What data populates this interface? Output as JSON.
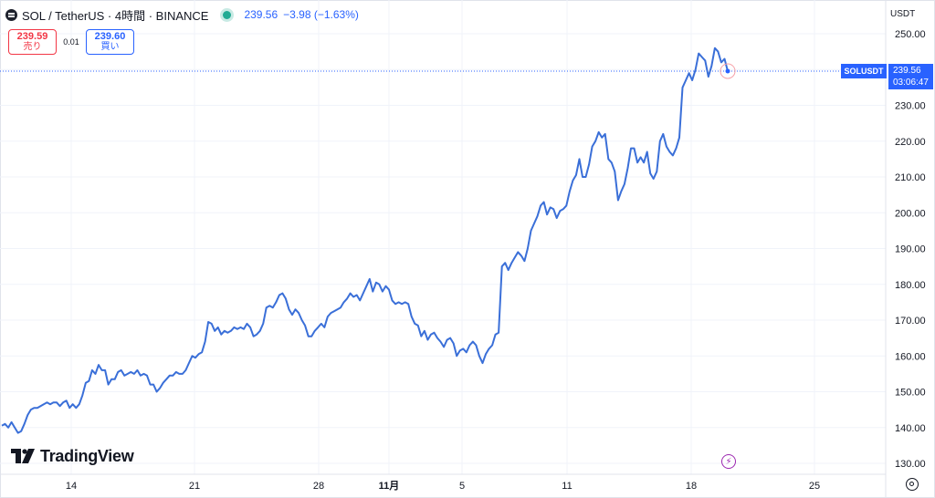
{
  "header": {
    "title": "SOL / TetherUS · 4時間 · BINANCE",
    "last": "239.56",
    "change": "−3.98 (−1.63%)"
  },
  "trade": {
    "sell_price": "239.59",
    "sell_label": "売り",
    "spread": "0.01",
    "buy_price": "239.60",
    "buy_label": "買い"
  },
  "axis": {
    "currency": "USDT"
  },
  "price_label": {
    "symbol": "SOLUSDT",
    "price": "239.56",
    "countdown": "03:06:47"
  },
  "branding": {
    "logo_text": "TradingView"
  },
  "colors": {
    "line": "#3a6fd8",
    "accent": "#2962ff",
    "sell": "#f23645",
    "grid": "#f0f3fa"
  },
  "chart_data": {
    "type": "line",
    "series": [
      {
        "values": [
          140.5,
          141,
          140,
          141.5,
          140,
          138.5,
          139,
          141,
          143.5,
          145,
          145.5,
          145.5,
          146,
          146.5,
          147,
          146.5,
          147,
          147,
          146,
          147,
          147.5,
          145.5,
          146.5,
          145.5,
          146.5,
          149,
          152.5,
          153,
          156,
          155,
          157.5,
          156,
          156,
          152,
          153.5,
          153.5,
          155.5,
          156,
          154.5,
          155,
          155.5,
          155,
          156,
          154.5,
          155,
          154.5,
          152,
          152,
          150,
          151,
          152.5,
          153.5,
          154.5,
          154.5,
          155.5,
          155,
          155,
          156,
          158,
          160,
          159.5,
          160.5,
          161,
          164,
          169.5,
          169,
          167,
          168,
          166,
          167,
          166.5,
          167,
          168,
          167.5,
          168,
          167.5,
          169,
          168,
          165.5,
          166,
          167,
          169,
          173.5,
          174,
          173.5,
          175,
          177,
          177.5,
          176,
          173,
          171.5,
          173,
          172,
          170,
          168.5,
          165.5,
          165.5,
          167,
          168,
          169,
          168,
          171,
          172,
          172.5,
          173,
          173.5,
          175,
          176,
          177.5,
          176.5,
          177,
          175.5,
          177.5,
          179.5,
          181.5,
          178,
          180.5,
          180,
          178,
          179.5,
          178.5,
          175.5,
          174.5,
          175,
          174.5,
          175,
          174.5,
          171,
          169,
          168.5,
          165.5,
          167,
          164.5,
          166,
          166.5,
          165,
          164,
          162.5,
          164.5,
          165,
          163.5,
          160,
          161.5,
          162,
          161,
          163,
          164,
          163,
          160,
          158,
          160.5,
          162,
          163,
          166,
          166.5,
          185,
          186,
          184,
          186,
          187.5,
          189,
          188,
          186.5,
          190,
          195,
          197,
          199,
          202,
          203,
          199.5,
          201.5,
          201,
          198.5,
          200.5,
          201,
          202,
          206,
          209,
          210.5,
          215,
          210,
          210,
          213.5,
          218.5,
          220,
          222.5,
          221,
          222,
          215,
          214,
          211.5,
          203.5,
          206,
          208,
          212.5,
          218,
          218,
          214,
          215.5,
          214,
          217,
          211,
          209.5,
          211.5,
          220,
          222,
          218.5,
          217,
          216,
          218,
          221,
          235,
          237,
          239,
          237,
          240,
          244.5,
          243.5,
          242.5,
          238,
          241,
          246,
          245,
          242,
          243
        ],
        "last_point": 239.56
      }
    ],
    "x_ticks": [
      "14",
      "21",
      "28",
      "11月",
      "5",
      "11",
      "18",
      "25"
    ],
    "y_ticks": [
      130,
      140,
      150,
      160,
      170,
      180,
      190,
      200,
      210,
      220,
      230,
      240,
      250
    ],
    "ylim": [
      128,
      254
    ],
    "grid": true
  }
}
